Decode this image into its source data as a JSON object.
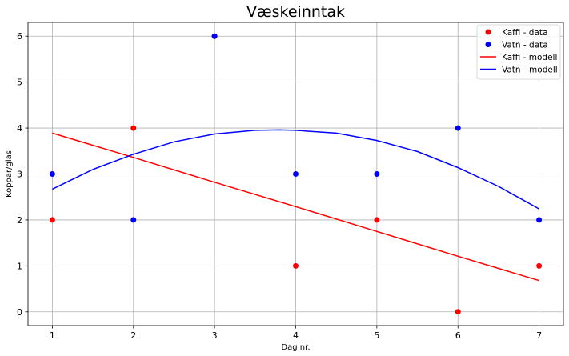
{
  "chart_data": {
    "type": "line",
    "title": "Væskeinntak",
    "xlabel": "Dag nr.",
    "ylabel": "Koppar/glas",
    "xlim": [
      0.7,
      7.3
    ],
    "ylim": [
      -0.3,
      6.3
    ],
    "xticks": [
      1,
      2,
      3,
      4,
      5,
      6,
      7
    ],
    "yticks": [
      0,
      1,
      2,
      3,
      4,
      5,
      6
    ],
    "grid": true,
    "legend_position": "top-right",
    "scatter_series": [
      {
        "name": "Kaffi - data",
        "color": "#ff0000",
        "x": [
          1,
          2,
          3,
          4,
          5,
          6,
          7
        ],
        "y": [
          2,
          4,
          6,
          1,
          2,
          0,
          1
        ]
      },
      {
        "name": "Vatn - data",
        "color": "#0000ff",
        "x": [
          1,
          2,
          3,
          4,
          5,
          6,
          7
        ],
        "y": [
          3,
          2,
          6,
          3,
          3,
          4,
          2
        ]
      }
    ],
    "line_series": [
      {
        "name": "Kaffi - modell",
        "color": "#ff0000",
        "x": [
          1,
          2,
          3,
          4,
          5,
          6,
          7
        ],
        "y": [
          3.89,
          3.36,
          2.82,
          2.29,
          1.75,
          1.21,
          0.68
        ]
      },
      {
        "name": "Vatn - modell",
        "color": "#0000ff",
        "x": [
          1,
          1.5,
          2,
          2.5,
          3,
          3.5,
          3.8,
          4,
          4.5,
          5,
          5.5,
          6,
          6.5,
          7
        ],
        "y": [
          2.67,
          3.1,
          3.43,
          3.7,
          3.87,
          3.95,
          3.96,
          3.95,
          3.89,
          3.73,
          3.49,
          3.14,
          2.73,
          2.24
        ]
      }
    ]
  }
}
